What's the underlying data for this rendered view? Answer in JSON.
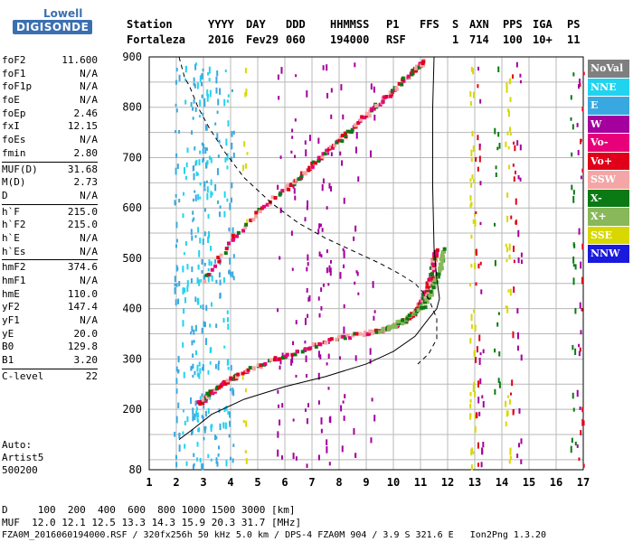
{
  "logo": {
    "line1": "Lowell",
    "line2": "DIGISONDE"
  },
  "header": {
    "labels": [
      "Station",
      "YYYY",
      "DAY",
      "DDD",
      "HHMMSS",
      "P1",
      "FFS",
      "S",
      "AXN",
      "PPS",
      "IGA",
      "PS"
    ],
    "values": [
      "Fortaleza",
      "2016",
      "Fev29",
      "060",
      "194000",
      "RSF",
      "1",
      "714",
      "100",
      "10+",
      "11"
    ]
  },
  "params": [
    {
      "k": "foF2",
      "v": "11.600"
    },
    {
      "k": "foF1",
      "v": "N/A"
    },
    {
      "k": "foF1p",
      "v": "N/A"
    },
    {
      "k": "foE",
      "v": "N/A"
    },
    {
      "k": "foEp",
      "v": "2.46"
    },
    {
      "k": "fxI",
      "v": "12.15"
    },
    {
      "k": "foEs",
      "v": "N/A"
    },
    {
      "k": "fmin",
      "v": "2.80"
    },
    {
      "k": "MUF(D)",
      "v": "31.68",
      "sep": true
    },
    {
      "k": "M(D)",
      "v": "2.73"
    },
    {
      "k": "D",
      "v": "N/A"
    },
    {
      "k": "h`F",
      "v": "215.0",
      "sep": true
    },
    {
      "k": "h`F2",
      "v": "215.0"
    },
    {
      "k": "h`E",
      "v": "N/A"
    },
    {
      "k": "h`Es",
      "v": "N/A"
    },
    {
      "k": "hmF2",
      "v": "374.6",
      "sep": true
    },
    {
      "k": "hmF1",
      "v": "N/A"
    },
    {
      "k": "hmE",
      "v": "110.0"
    },
    {
      "k": "yF2",
      "v": "147.4"
    },
    {
      "k": "yF1",
      "v": "N/A"
    },
    {
      "k": "yE",
      "v": "20.0"
    },
    {
      "k": "B0",
      "v": "129.8"
    },
    {
      "k": "B1",
      "v": "3.20"
    },
    {
      "k": "C-level",
      "v": "22",
      "sep": true
    }
  ],
  "auto": [
    "Auto:",
    "Artist5",
    "500200"
  ],
  "legend": [
    {
      "label": "NoVal",
      "color": "#7f7f7f"
    },
    {
      "label": "NNE",
      "color": "#22d3f0"
    },
    {
      "label": "E",
      "color": "#3aa8e0"
    },
    {
      "label": "W",
      "color": "#a4009e"
    },
    {
      "label": "Vo-",
      "color": "#e8007a"
    },
    {
      "label": "Vo+",
      "color": "#e0001a"
    },
    {
      "label": "SSW",
      "color": "#f4a6a6"
    },
    {
      "label": "X-",
      "color": "#0b7a14"
    },
    {
      "label": "X+",
      "color": "#88b85a"
    },
    {
      "label": "SSE",
      "color": "#d8d800"
    },
    {
      "label": "NNW",
      "color": "#1a1adc"
    }
  ],
  "footer": {
    "d_row": "D     100  200  400  600  800 1000 1500 3000 [km]",
    "muf_row": "MUF  12.0 12.1 12.5 13.3 14.3 15.9 20.3 31.7 [MHz]",
    "file_row": "FZA0M_2016060194000.RSF / 320fx256h 50 kHz 5.0 km / DPS-4 FZA0M 904 / 3.9 S 321.6 E   Ion2Png 1.3.20"
  },
  "chart_data": {
    "type": "scatter",
    "xlabel": "",
    "ylabel": "",
    "xlim": [
      1,
      17
    ],
    "ylim": [
      80,
      900
    ],
    "xticks": [
      "1",
      "2",
      "3",
      "4",
      "5",
      "6",
      "7",
      "8",
      "9",
      "10",
      "11",
      "12",
      "13",
      "14",
      "15",
      "16",
      "17"
    ],
    "yticks": [
      "900",
      "800",
      "700",
      "600",
      "500",
      "400",
      "300",
      "200",
      "80"
    ],
    "grid": true,
    "series": [
      {
        "kind": "o_trace",
        "x": [
          2.8,
          3.0,
          3.3,
          3.7,
          4.2,
          5.0,
          6.0,
          7.0,
          8.0,
          9.0,
          9.8,
          10.4,
          10.8,
          11.0,
          11.2,
          11.35,
          11.45,
          11.5
        ],
        "y": [
          215,
          225,
          240,
          255,
          270,
          290,
          310,
          330,
          345,
          355,
          365,
          380,
          400,
          420,
          445,
          470,
          500,
          520
        ]
      },
      {
        "kind": "o_upper",
        "x": [
          3.0,
          4.0,
          5.0,
          6.0,
          6.5,
          7.0,
          7.5,
          8.0,
          8.5,
          9.0,
          9.5,
          10.0,
          10.5,
          10.8,
          11.1
        ],
        "y": [
          460,
          540,
          600,
          640,
          665,
          690,
          715,
          740,
          765,
          790,
          815,
          840,
          865,
          880,
          895
        ]
      },
      {
        "kind": "x_trace",
        "x": [
          9.5,
          10.0,
          10.5,
          11.0,
          11.3,
          11.5,
          11.7,
          11.8
        ],
        "y": [
          360,
          370,
          385,
          405,
          430,
          460,
          490,
          520
        ]
      },
      {
        "kind": "profile_solid",
        "x": [
          2.1,
          2.6,
          3.3,
          4.5,
          6.0,
          7.5,
          9.0,
          10.0,
          10.8,
          11.3,
          11.6,
          11.7,
          11.6,
          11.5,
          11.45,
          11.45,
          11.5
        ],
        "y": [
          140,
          160,
          190,
          220,
          245,
          265,
          290,
          315,
          345,
          380,
          400,
          420,
          460,
          520,
          640,
          800,
          900
        ]
      },
      {
        "kind": "profile_dashed",
        "x": [
          2.1,
          2.3,
          2.5,
          2.8,
          3.2,
          3.8,
          4.5,
          5.5,
          6.5,
          7.5,
          8.5,
          9.5,
          10.2,
          10.8,
          11.3,
          11.6,
          11.6,
          11.3,
          10.9
        ],
        "y": [
          900,
          860,
          840,
          800,
          760,
          710,
          660,
          610,
          570,
          540,
          515,
          490,
          470,
          450,
          420,
          380,
          340,
          310,
          290
        ]
      }
    ]
  }
}
